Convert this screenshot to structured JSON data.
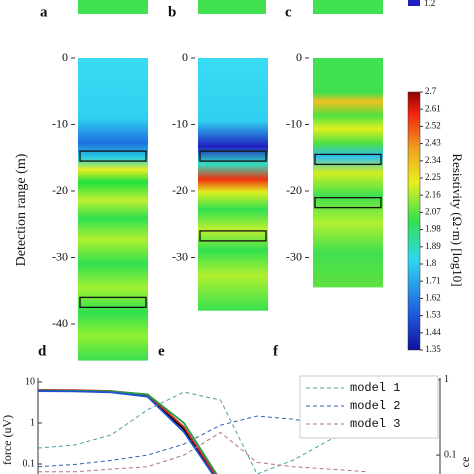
{
  "chart_data": [
    {
      "type": "heatmap-strip",
      "panel": "a"
    },
    {
      "type": "heatmap-strip",
      "panel": "b"
    },
    {
      "type": "heatmap-strip",
      "panel": "c",
      "colorbar_tick": 1.2
    },
    {
      "type": "depth-section",
      "panel": "d",
      "ylabel": "Detection range (m)",
      "ylim": [
        0,
        -45.5
      ],
      "yticks": [
        0,
        -10,
        -20,
        -30,
        -40
      ],
      "boxes": [
        [
          -14,
          -15.5
        ],
        [
          -36,
          -37.5
        ]
      ]
    },
    {
      "type": "depth-section",
      "panel": "e",
      "ylim": [
        0,
        -38
      ],
      "yticks": [
        0,
        -10,
        -20,
        -30
      ],
      "boxes": [
        [
          -14,
          -15.5
        ],
        [
          -26,
          -27.5
        ]
      ]
    },
    {
      "type": "depth-section",
      "panel": "f",
      "ylim": [
        0,
        -34.5
      ],
      "yticks": [
        0,
        -10,
        -20,
        -30
      ],
      "boxes": [
        [
          -14.5,
          -16
        ],
        [
          -21,
          -22.5
        ]
      ]
    },
    {
      "type": "colorbar",
      "label": "Resistivity (Ω·m) [log10]",
      "ylim": [
        1.35,
        2.7
      ],
      "yticks": [
        2.7,
        2.61,
        2.52,
        2.43,
        2.34,
        2.25,
        2.16,
        2.07,
        1.98,
        1.89,
        1.8,
        1.71,
        1.62,
        1.53,
        1.44,
        1.35
      ]
    },
    {
      "type": "line",
      "ylabel": "force (uV)",
      "y2label": "ce",
      "log_scale": true,
      "ylim": [
        0.057,
        12.5
      ],
      "yticks": [
        10,
        1,
        0.1
      ],
      "y2lim": [
        0.056,
        1.06
      ],
      "y2ticks": [
        1,
        0.1
      ],
      "series": [
        {
          "color": "#000000",
          "values": [
            6.3,
            6.2,
            5.9,
            4.6,
            0.7,
            0.03
          ]
        },
        {
          "color": "#d62020",
          "values": [
            6.4,
            6.3,
            6.0,
            4.9,
            0.8,
            0.035
          ]
        },
        {
          "color": "#20a040",
          "values": [
            6.2,
            6.1,
            5.9,
            5.0,
            1.0,
            0.04
          ]
        },
        {
          "color": "#2050d0",
          "values": [
            6.0,
            5.9,
            5.6,
            4.4,
            0.6,
            0.03
          ]
        },
        {
          "name": "model 1",
          "color": "#4aa0a0",
          "axis": "y2",
          "values": [
            0.124,
            0.136,
            0.185,
            0.4,
            0.69,
            0.54,
            0.056,
            0.086,
            0.16,
            0.22
          ]
        },
        {
          "name": "model 2",
          "color": "#3060b0",
          "axis": "y2",
          "values": [
            0.07,
            0.075,
            0.085,
            0.1,
            0.14,
            0.25,
            0.33,
            0.3,
            0.25,
            0.22
          ]
        },
        {
          "name": "model 3",
          "color": "#b07090",
          "axis": "y2",
          "values": [
            0.06,
            0.06,
            0.065,
            0.07,
            0.1,
            0.2,
            0.08,
            0.07,
            0.065,
            0.06
          ]
        }
      ]
    }
  ]
}
